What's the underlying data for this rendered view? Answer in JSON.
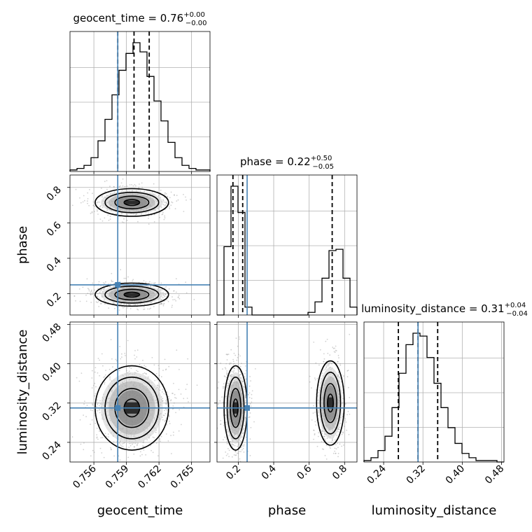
{
  "truth_color": "#4682b4",
  "chart_data": {
    "type": "corner",
    "parameters": [
      "geocent_time",
      "phase",
      "luminosity_distance"
    ],
    "truths": [
      0.7582,
      0.25,
      0.31
    ],
    "titles": [
      {
        "text": "geocent_time = 0.76",
        "sup": "+0.00",
        "sub": "−0.00"
      },
      {
        "text": "phase = 0.22",
        "sup": "+0.50",
        "sub": "−0.05"
      },
      {
        "text": "luminosity_distance = 0.31",
        "sup": "+0.04",
        "sub": "−0.04"
      }
    ],
    "ranges": [
      [
        0.7538,
        0.7667
      ],
      [
        0.08,
        0.87
      ],
      [
        0.2,
        0.485
      ]
    ],
    "ticks": [
      {
        "values": [
          0.756,
          0.759,
          0.762,
          0.765
        ],
        "labels": [
          "0.756",
          "0.759",
          "0.762",
          "0.765"
        ]
      },
      {
        "values": [
          0.2,
          0.4,
          0.6,
          0.8
        ],
        "labels": [
          "0.2",
          "0.4",
          "0.6",
          "0.8"
        ]
      },
      {
        "values": [
          0.24,
          0.32,
          0.4,
          0.48
        ],
        "labels": [
          "0.24",
          "0.32",
          "0.40",
          "0.48"
        ]
      }
    ],
    "quantiles": [
      [
        0.7582,
        0.7597,
        0.7611
      ],
      [
        0.17,
        0.225,
        0.73
      ],
      [
        0.27,
        0.31,
        0.35
      ]
    ],
    "histograms": [
      {
        "counts": [
          1,
          2,
          4,
          9,
          20,
          34,
          50,
          66,
          77,
          84,
          78,
          62,
          46,
          33,
          19,
          9,
          4,
          2,
          1,
          1
        ]
      },
      {
        "counts": [
          0,
          52,
          98,
          78,
          6,
          0,
          0,
          0,
          0,
          0,
          0,
          0,
          0,
          2,
          10,
          28,
          49,
          50,
          28,
          6
        ]
      },
      {
        "counts": [
          1,
          3,
          8,
          18,
          38,
          62,
          82,
          90,
          88,
          73,
          55,
          38,
          24,
          13,
          6,
          3,
          1,
          1,
          1,
          0
        ]
      }
    ],
    "blobs": [
      {
        "panel": "1-0",
        "cx": 0.7595,
        "cy": 0.195,
        "sx": 0.0013,
        "sy": 0.025,
        "n": 800
      },
      {
        "panel": "1-0",
        "cx": 0.7595,
        "cy": 0.715,
        "sx": 0.0013,
        "sy": 0.03,
        "n": 600
      },
      {
        "panel": "2-0",
        "cx": 0.7595,
        "cy": 0.31,
        "sx": 0.0013,
        "sy": 0.033,
        "n": 1000
      },
      {
        "panel": "2-1",
        "cx": 0.185,
        "cy": 0.31,
        "sx": 0.025,
        "sy": 0.033,
        "n": 800
      },
      {
        "panel": "2-1",
        "cx": 0.72,
        "cy": 0.32,
        "sx": 0.03,
        "sy": 0.033,
        "n": 600
      }
    ]
  }
}
